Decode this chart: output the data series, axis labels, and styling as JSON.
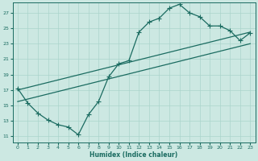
{
  "xlabel": "Humidex (Indice chaleur)",
  "xlim": [
    -0.5,
    23.5
  ],
  "ylim": [
    10.2,
    28.3
  ],
  "xticks": [
    0,
    1,
    2,
    3,
    4,
    5,
    6,
    7,
    8,
    9,
    10,
    11,
    12,
    13,
    14,
    15,
    16,
    17,
    18,
    19,
    20,
    21,
    22,
    23
  ],
  "yticks": [
    11,
    13,
    15,
    17,
    19,
    21,
    23,
    25,
    27
  ],
  "bg_color": "#cce8e2",
  "grid_color": "#aad4cc",
  "line_color": "#1a6b60",
  "curve_x": [
    0,
    1,
    2,
    3,
    4,
    5,
    6,
    7,
    8,
    9,
    10,
    11,
    12,
    13,
    14,
    15,
    16,
    17,
    18,
    19,
    20,
    21,
    22,
    23
  ],
  "curve_y": [
    17.2,
    15.3,
    14.0,
    13.1,
    12.5,
    12.2,
    11.2,
    13.8,
    15.5,
    18.7,
    20.4,
    20.8,
    24.5,
    25.8,
    26.3,
    27.6,
    28.1,
    27.0,
    26.5,
    25.3,
    25.3,
    24.7,
    23.4,
    24.4
  ],
  "line1_x": [
    0,
    23
  ],
  "line1_y": [
    17.0,
    24.5
  ],
  "line2_x": [
    0,
    23
  ],
  "line2_y": [
    15.5,
    23.0
  ],
  "marker_size": 2.5,
  "line_width": 0.9
}
